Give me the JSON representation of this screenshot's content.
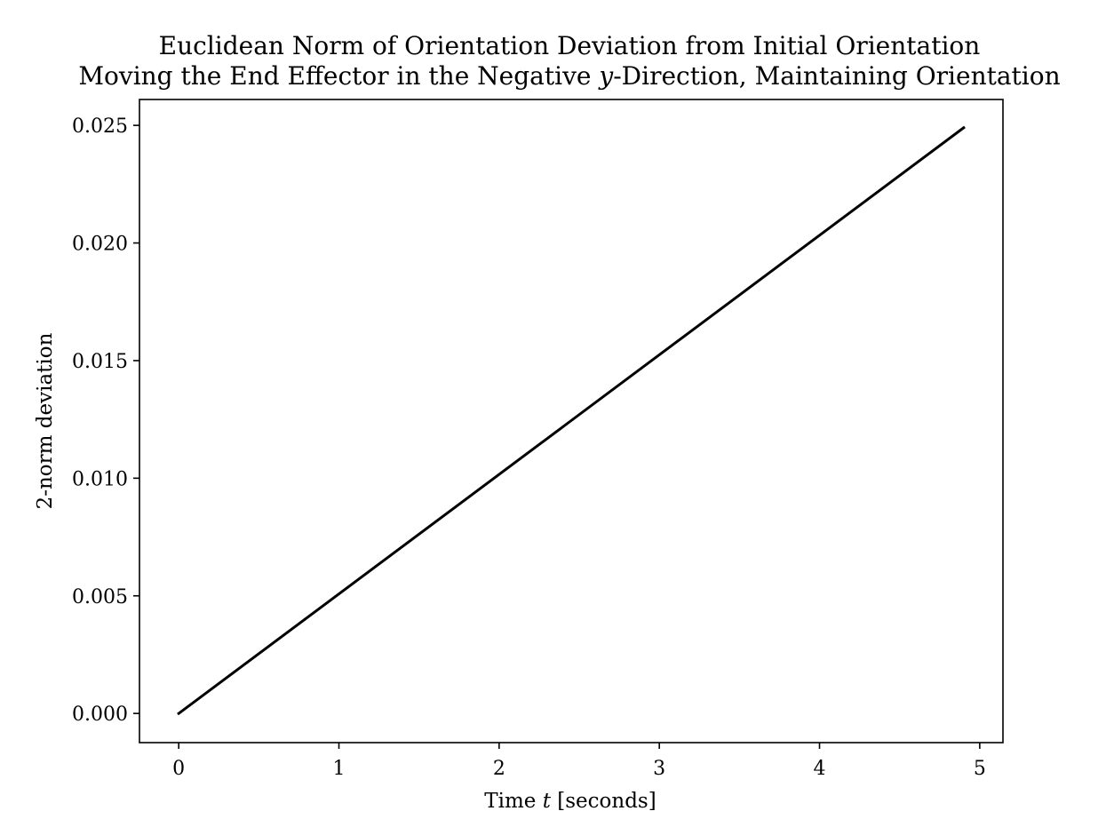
{
  "chart_data": {
    "type": "line",
    "title": "Euclidean Norm of Orientation Deviation from Initial Orientation",
    "subtitle": {
      "before": "Moving the End Effector in the Negative ",
      "italic": "y",
      "after": "-Direction, Maintaining Orientation"
    },
    "xlabel": {
      "before": "Time ",
      "italic": "t",
      "after": " [seconds]"
    },
    "ylabel": "2-norm deviation",
    "xlim": [
      -0.245,
      5.145
    ],
    "ylim": [
      -0.00124,
      0.0261
    ],
    "xticks": [
      0,
      1,
      2,
      3,
      4,
      5
    ],
    "xtick_labels": [
      "0",
      "1",
      "2",
      "3",
      "4",
      "5"
    ],
    "yticks": [
      0.0,
      0.005,
      0.01,
      0.015,
      0.02,
      0.025
    ],
    "ytick_labels": [
      "0.000",
      "0.005",
      "0.010",
      "0.015",
      "0.020",
      "0.025"
    ],
    "grid": false,
    "series": [
      {
        "color": "#000000",
        "x": [
          0,
          4.9
        ],
        "y": [
          0.0,
          0.0249
        ]
      }
    ]
  }
}
